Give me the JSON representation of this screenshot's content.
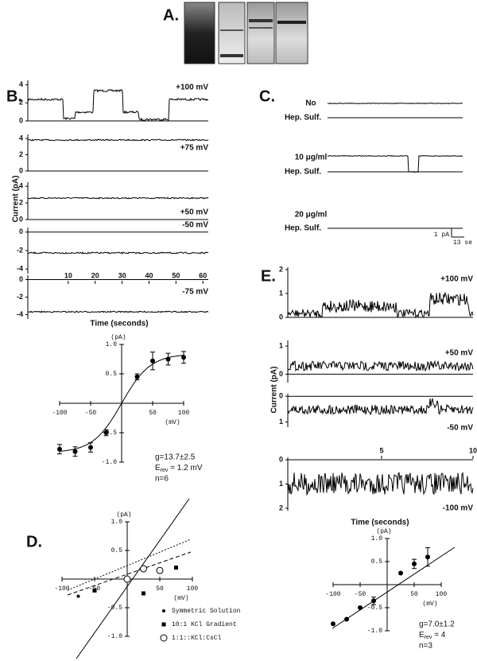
{
  "panel_a": {
    "label": "A."
  },
  "panel_b": {
    "label": "B.",
    "y_axis_label": "Current (pA)",
    "x_axis_label": "Time (seconds)",
    "xlim": [
      -5,
      62
    ],
    "xticks": [
      10,
      20,
      30,
      40,
      50,
      60
    ],
    "traces": [
      {
        "voltage": "+100 mV",
        "ylim": [
          0,
          4.5
        ],
        "yticks": [
          4,
          2,
          0
        ]
      },
      {
        "voltage": "+75 mV",
        "ylim": [
          0,
          4.5
        ],
        "yticks": [
          4,
          2,
          0
        ]
      },
      {
        "voltage": "+50 mV",
        "ylim": [
          0,
          4.5
        ],
        "yticks": [
          4,
          2,
          0
        ]
      },
      {
        "voltage": "-50 mV",
        "ylim": [
          -4.5,
          0.5
        ],
        "yticks": [
          0,
          -2,
          -4
        ]
      },
      {
        "voltage": "-75 mV",
        "ylim": [
          -4.5,
          0.5
        ],
        "yticks": [
          0,
          -2,
          -4
        ]
      }
    ],
    "iv": {
      "y_unit": "(pA)",
      "x_unit": "(mV)",
      "xticks": [
        -100,
        -50,
        50,
        100
      ],
      "yticks": [
        {
          "value": 1,
          "label": "1.0"
        },
        0.5,
        -0.5,
        {
          "value": -1,
          "label": "-1.0"
        }
      ],
      "voltages": [
        -100,
        -75,
        -50,
        -25,
        25,
        50,
        75,
        100
      ],
      "currents": [
        -0.78,
        -0.82,
        -0.75,
        -0.5,
        0.45,
        0.72,
        0.75,
        0.78
      ],
      "errors": [
        0.08,
        0.08,
        0.08,
        0.05,
        0.05,
        0.15,
        0.1,
        0.1
      ],
      "stats": {
        "conductance": "g=13.7±2.5",
        "e_symbol": "E",
        "e_subscript": "rev",
        "e_value": " = 1.2 mV",
        "n": "n=6"
      }
    }
  },
  "panel_c": {
    "label": "C.",
    "conditions": [
      {
        "line1": "No",
        "line2": "Hep. Sulf."
      },
      {
        "line1": "10 μg/ml",
        "line2": "Hep. Sulf."
      },
      {
        "line1": "20 μg/ml",
        "line2": "Hep. Sulf."
      }
    ],
    "scale_current": "1 pA",
    "scale_time": "13 se"
  },
  "panel_d": {
    "label": "D.",
    "iv": {
      "y_unit": "(pA)",
      "x_unit": "(mV)",
      "xticks": [
        -100,
        -50,
        50,
        100
      ],
      "yticks": [
        {
          "value": 1,
          "label": "1.0"
        },
        0.5,
        -0.5,
        {
          "value": -1,
          "label": "-1.0"
        }
      ],
      "series": [
        {
          "name": "Symmetric Solution",
          "marker": "dot",
          "voltages": [
            -75,
            -50,
            25
          ],
          "currents": [
            -0.3,
            -0.2,
            0.15
          ]
        },
        {
          "name": "10:1 KCl Gradient",
          "marker": "square",
          "voltages": [
            -50,
            25,
            50,
            75
          ],
          "currents": [
            -0.2,
            -0.25,
            0.15,
            0.2
          ]
        },
        {
          "name": "1:1::KCl:CsCl",
          "marker": "circle",
          "voltages": [
            0,
            25,
            50
          ],
          "currents": [
            0,
            0.18,
            0.15
          ]
        }
      ]
    }
  },
  "panel_e": {
    "label": "E.",
    "y_axis_label": "Current (pA)",
    "x_axis_label": "Time (seconds)",
    "xlim": [
      0,
      10
    ],
    "xticks": [
      5,
      10
    ],
    "traces": [
      {
        "voltage": "+100 mV",
        "ylim": [
          0,
          2.1
        ],
        "yticks": [
          2,
          1,
          0
        ]
      },
      {
        "voltage": "+50 mV",
        "ylim": [
          -0.3,
          1.2
        ],
        "yticks": [
          1,
          0
        ]
      },
      {
        "voltage": "-50 mV",
        "ylim": [
          -0.1,
          1.2
        ],
        "yticks": [
          0,
          1
        ],
        "inverted": true
      },
      {
        "voltage": "-100 mV",
        "ylim": [
          -0.1,
          2.1
        ],
        "yticks": [
          0,
          1,
          2
        ],
        "inverted": true
      }
    ],
    "iv": {
      "y_unit": "(pA)",
      "x_unit": "(mV)",
      "xticks": [
        -100,
        -50,
        50,
        100
      ],
      "yticks": [
        {
          "value": 1,
          "label": "1.0"
        },
        0.5,
        -0.5,
        {
          "value": -1,
          "label": "-1.0"
        }
      ],
      "voltages": [
        -100,
        -75,
        -50,
        -25,
        25,
        50,
        75
      ],
      "currents": [
        -0.85,
        -0.75,
        -0.5,
        -0.35,
        0.25,
        0.45,
        0.6
      ],
      "errors": [
        0,
        0,
        0,
        0.08,
        0,
        0.1,
        0.2
      ],
      "stats": {
        "conductance": "g=7.0±1.2",
        "e_symbol": "E",
        "e_subscript": "rev",
        "e_value": " = 4",
        "n": "n=3"
      }
    }
  }
}
